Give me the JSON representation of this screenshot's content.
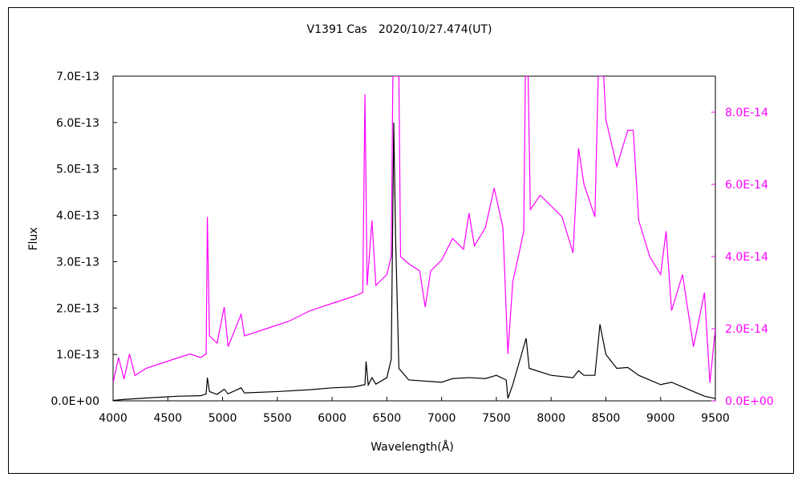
{
  "chart_data": {
    "type": "line",
    "title": "V1391 Cas　2020/10/27.474(UT)",
    "xlabel": "Wavelength(Å)",
    "ylabel": "Flux",
    "xlim": [
      4000,
      9500
    ],
    "ylim_left": [
      0,
      7e-13
    ],
    "ylim_right": [
      0,
      9e-14
    ],
    "x_ticks": [
      "4000",
      "4500",
      "5000",
      "5500",
      "6000",
      "6500",
      "7000",
      "7500",
      "8000",
      "8500",
      "9000",
      "9500"
    ],
    "y_ticks_left": [
      "0.0E+00",
      "1.0E-13",
      "2.0E-13",
      "3.0E-13",
      "4.0E-13",
      "5.0E-13",
      "6.0E-13",
      "7.0E-13"
    ],
    "y_ticks_right": [
      "0.0E+00",
      "2.0E-14",
      "4.0E-14",
      "6.0E-14",
      "8.0E-14"
    ],
    "grid": false,
    "colors": {
      "left_series": "#000000",
      "right_series": "#ff00ff",
      "right_axis": "#ff00ff"
    },
    "series": [
      {
        "axis": "left",
        "color": "#000000",
        "points": [
          [
            4000,
            1e-15
          ],
          [
            4100,
            3e-15
          ],
          [
            4300,
            6e-15
          ],
          [
            4600,
            1e-14
          ],
          [
            4800,
            1.1e-14
          ],
          [
            4850,
            1.5e-14
          ],
          [
            4861,
            5e-14
          ],
          [
            4880,
            2e-14
          ],
          [
            4950,
            1.4e-14
          ],
          [
            5015,
            2.5e-14
          ],
          [
            5050,
            1.5e-14
          ],
          [
            5169,
            2.8e-14
          ],
          [
            5200,
            1.7e-14
          ],
          [
            5500,
            2e-14
          ],
          [
            5800,
            2.4e-14
          ],
          [
            6000,
            2.8e-14
          ],
          [
            6200,
            3e-14
          ],
          [
            6300,
            3.5e-14
          ],
          [
            6310,
            8.5e-14
          ],
          [
            6330,
            3.4e-14
          ],
          [
            6364,
            5e-14
          ],
          [
            6400,
            3.6e-14
          ],
          [
            6500,
            5e-14
          ],
          [
            6540,
            9e-14
          ],
          [
            6563,
            6e-13
          ],
          [
            6580,
            3.5e-13
          ],
          [
            6610,
            7e-14
          ],
          [
            6700,
            4.5e-14
          ],
          [
            7000,
            4e-14
          ],
          [
            7100,
            4.8e-14
          ],
          [
            7250,
            5e-14
          ],
          [
            7400,
            4.8e-14
          ],
          [
            7500,
            5.5e-14
          ],
          [
            7590,
            4.5e-14
          ],
          [
            7605,
            5e-15
          ],
          [
            7650,
            3.5e-14
          ],
          [
            7772,
            1.35e-13
          ],
          [
            7800,
            7e-14
          ],
          [
            8000,
            5.5e-14
          ],
          [
            8200,
            5e-14
          ],
          [
            8250,
            6.5e-14
          ],
          [
            8300,
            5.5e-14
          ],
          [
            8400,
            5.5e-14
          ],
          [
            8446,
            1.65e-13
          ],
          [
            8500,
            1e-13
          ],
          [
            8600,
            7e-14
          ],
          [
            8700,
            7.2e-14
          ],
          [
            8800,
            5.5e-14
          ],
          [
            9000,
            3.5e-14
          ],
          [
            9100,
            4e-14
          ],
          [
            9250,
            2.5e-14
          ],
          [
            9400,
            1e-14
          ],
          [
            9500,
            5e-15
          ]
        ]
      },
      {
        "axis": "right",
        "color": "#ff00ff",
        "points": [
          [
            4000,
            5e-15
          ],
          [
            4050,
            1.2e-14
          ],
          [
            4100,
            6e-15
          ],
          [
            4150,
            1.3e-14
          ],
          [
            4200,
            7e-15
          ],
          [
            4300,
            9e-15
          ],
          [
            4400,
            1e-14
          ],
          [
            4500,
            1.1e-14
          ],
          [
            4600,
            1.2e-14
          ],
          [
            4700,
            1.3e-14
          ],
          [
            4800,
            1.2e-14
          ],
          [
            4850,
            1.3e-14
          ],
          [
            4861,
            5.1e-14
          ],
          [
            4880,
            1.8e-14
          ],
          [
            4950,
            1.6e-14
          ],
          [
            5015,
            2.6e-14
          ],
          [
            5050,
            1.5e-14
          ],
          [
            5169,
            2.4e-14
          ],
          [
            5200,
            1.8e-14
          ],
          [
            5400,
            2e-14
          ],
          [
            5600,
            2.2e-14
          ],
          [
            5800,
            2.5e-14
          ],
          [
            6000,
            2.7e-14
          ],
          [
            6200,
            2.9e-14
          ],
          [
            6280,
            3e-14
          ],
          [
            6300,
            8.5e-14
          ],
          [
            6320,
            3.2e-14
          ],
          [
            6364,
            5e-14
          ],
          [
            6400,
            3.2e-14
          ],
          [
            6500,
            3.5e-14
          ],
          [
            6540,
            4e-14
          ],
          [
            6555,
            9e-14
          ],
          [
            6610,
            9e-14
          ],
          [
            6625,
            4e-14
          ],
          [
            6700,
            3.8e-14
          ],
          [
            6800,
            3.6e-14
          ],
          [
            6850,
            2.6e-14
          ],
          [
            6900,
            3.6e-14
          ],
          [
            7000,
            3.9e-14
          ],
          [
            7100,
            4.5e-14
          ],
          [
            7200,
            4.2e-14
          ],
          [
            7250,
            5.2e-14
          ],
          [
            7300,
            4.3e-14
          ],
          [
            7400,
            4.8e-14
          ],
          [
            7480,
            5.9e-14
          ],
          [
            7560,
            4.8e-14
          ],
          [
            7605,
            1.3e-14
          ],
          [
            7650,
            3.3e-14
          ],
          [
            7750,
            4.7e-14
          ],
          [
            7765,
            9e-14
          ],
          [
            7790,
            9e-14
          ],
          [
            7810,
            5.3e-14
          ],
          [
            7900,
            5.7e-14
          ],
          [
            8000,
            5.4e-14
          ],
          [
            8100,
            5.1e-14
          ],
          [
            8200,
            4.1e-14
          ],
          [
            8250,
            7e-14
          ],
          [
            8300,
            6e-14
          ],
          [
            8400,
            5.1e-14
          ],
          [
            8430,
            9e-14
          ],
          [
            8480,
            9e-14
          ],
          [
            8500,
            7.8e-14
          ],
          [
            8600,
            6.5e-14
          ],
          [
            8700,
            7.5e-14
          ],
          [
            8750,
            7.5e-14
          ],
          [
            8800,
            5e-14
          ],
          [
            8900,
            4e-14
          ],
          [
            9000,
            3.5e-14
          ],
          [
            9050,
            4.7e-14
          ],
          [
            9100,
            2.5e-14
          ],
          [
            9200,
            3.5e-14
          ],
          [
            9300,
            1.5e-14
          ],
          [
            9400,
            3e-14
          ],
          [
            9450,
            5e-15
          ],
          [
            9500,
            2e-14
          ]
        ]
      }
    ]
  }
}
